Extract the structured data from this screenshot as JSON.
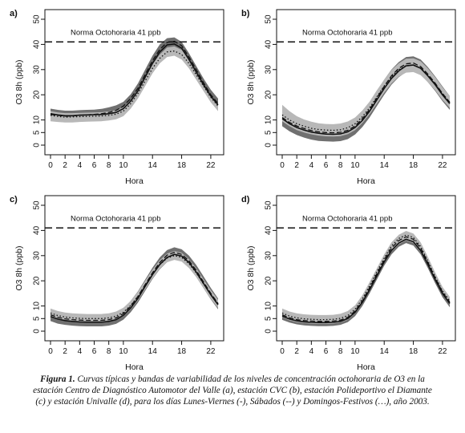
{
  "chart_data": [
    {
      "type": "line",
      "panel_label": "a)",
      "xlabel": "Hora",
      "ylabel": "O3 8h (ppb)",
      "xlim": [
        0,
        23
      ],
      "ylim": [
        0,
        50
      ],
      "x_ticks": [
        0,
        2,
        4,
        6,
        8,
        10,
        14,
        18,
        22
      ],
      "y_ticks": [
        0,
        5,
        10,
        20,
        30,
        40,
        50
      ],
      "reference_line": {
        "value": 41,
        "label": "Norma Octohoraria 41 ppb"
      },
      "x": [
        0,
        1,
        2,
        3,
        4,
        5,
        6,
        7,
        8,
        9,
        10,
        11,
        12,
        13,
        14,
        15,
        16,
        17,
        18,
        19,
        20,
        21,
        22,
        23
      ],
      "series": [
        {
          "style": "solid",
          "values": [
            12.5,
            12,
            11.7,
            11.7,
            11.9,
            12,
            12.1,
            12.2,
            12.5,
            13,
            14.5,
            17.5,
            21.5,
            27,
            32.5,
            37,
            39.8,
            40.2,
            38.5,
            34,
            29,
            24,
            19.5,
            16
          ]
        },
        {
          "style": "dashed",
          "values": [
            12.2,
            11.8,
            11.5,
            11.6,
            11.8,
            12,
            12.2,
            12.5,
            13,
            13.8,
            15.5,
            18.5,
            22.5,
            28,
            33.5,
            38,
            40.8,
            41.2,
            39.5,
            35,
            30,
            24.8,
            20,
            16.5
          ]
        },
        {
          "style": "dotted",
          "values": [
            11.8,
            11.4,
            11.1,
            11.2,
            11.3,
            11.4,
            11.5,
            11.6,
            11.8,
            12.3,
            13.5,
            16.5,
            20.5,
            25.5,
            30.5,
            34.5,
            37,
            37.4,
            36,
            32.5,
            28,
            23.5,
            19,
            15.5
          ]
        }
      ],
      "bands": [
        {
          "shade": "dark",
          "lower": [
            10.5,
            10.2,
            10,
            10,
            10.2,
            10.3,
            10.4,
            10.5,
            10.8,
            11.3,
            12.8,
            15.8,
            19.8,
            25,
            30.5,
            35,
            37.8,
            38.2,
            36.5,
            32,
            27,
            22,
            17.5,
            14
          ],
          "upper": [
            14.5,
            14,
            13.7,
            13.7,
            13.9,
            14,
            14.1,
            14.4,
            15,
            15.8,
            17.2,
            20.2,
            24.5,
            30,
            35.5,
            40,
            42.5,
            42.8,
            41,
            36.5,
            31.5,
            26.5,
            22,
            18.5
          ]
        },
        {
          "shade": "light",
          "lower": [
            9.5,
            9.2,
            9,
            9,
            9.2,
            9.3,
            9.4,
            9.5,
            9.8,
            10.3,
            11.5,
            14.5,
            18.5,
            23.5,
            28.5,
            32.5,
            35,
            35.5,
            34,
            30.5,
            26,
            21.5,
            17,
            13.5
          ],
          "upper": [
            13.5,
            13,
            12.7,
            12.7,
            12.8,
            12.9,
            13,
            13.1,
            13.4,
            13.9,
            15,
            18,
            22,
            27,
            32,
            36,
            38.8,
            39.2,
            37.8,
            34,
            29.5,
            24.5,
            20,
            16.5
          ]
        }
      ]
    },
    {
      "type": "line",
      "panel_label": "b)",
      "xlabel": "Hora",
      "ylabel": "O3 8h (ppb)",
      "xlim": [
        0,
        23
      ],
      "ylim": [
        0,
        50
      ],
      "x_ticks": [
        0,
        2,
        4,
        6,
        8,
        10,
        14,
        18,
        22
      ],
      "y_ticks": [
        0,
        5,
        10,
        20,
        30,
        40,
        50
      ],
      "reference_line": {
        "value": 41,
        "label": "Norma Octohoraria 41 ppb"
      },
      "x": [
        0,
        1,
        2,
        3,
        4,
        5,
        6,
        7,
        8,
        9,
        10,
        11,
        12,
        13,
        14,
        15,
        16,
        17,
        18,
        19,
        20,
        21,
        22,
        23
      ],
      "series": [
        {
          "style": "solid",
          "values": [
            10.5,
            8.5,
            7,
            6,
            5.2,
            4.7,
            4.4,
            4.3,
            4.5,
            5.3,
            7,
            9.8,
            13.5,
            18,
            22.5,
            26.5,
            29.5,
            31.5,
            31.8,
            30.5,
            27.5,
            24,
            20,
            16.5
          ]
        },
        {
          "style": "dashed",
          "values": [
            11,
            9,
            7.6,
            6.6,
            5.8,
            5.3,
            5,
            4.9,
            5.1,
            5.9,
            7.6,
            10.5,
            14.2,
            18.8,
            23.3,
            27.5,
            30.5,
            32.3,
            32.6,
            31.2,
            28.2,
            24.6,
            20.5,
            17
          ]
        },
        {
          "style": "dotted",
          "values": [
            12,
            10,
            8.5,
            7.5,
            6.7,
            6.2,
            6,
            5.9,
            6.1,
            6.9,
            8.5,
            11.3,
            14.8,
            19.2,
            23.5,
            27.2,
            30,
            31.6,
            31.8,
            30.6,
            27.8,
            24.3,
            20.5,
            17
          ]
        }
      ],
      "bands": [
        {
          "shade": "dark",
          "lower": [
            7.5,
            5.5,
            4,
            3,
            2.2,
            1.7,
            1.5,
            1.4,
            1.6,
            2.4,
            4.2,
            7.2,
            11,
            15.5,
            20,
            24,
            27,
            29,
            29.3,
            28,
            25,
            21.5,
            17.5,
            14
          ],
          "upper": [
            13.5,
            11.5,
            10,
            9,
            8.2,
            7.7,
            7.4,
            7.3,
            7.6,
            8.4,
            10.2,
            13,
            16.8,
            21.5,
            26,
            30,
            33,
            35,
            35.3,
            34,
            31,
            27.3,
            23.3,
            19.5
          ]
        },
        {
          "shade": "light",
          "lower": [
            9.5,
            7.5,
            6,
            5,
            4.3,
            3.8,
            3.5,
            3.4,
            3.6,
            4.4,
            6,
            8.8,
            12.3,
            16.5,
            20.8,
            24.5,
            27.2,
            28.8,
            29,
            27.8,
            25,
            21.8,
            18,
            14.8
          ],
          "upper": [
            16,
            13.5,
            11.5,
            10.2,
            9.3,
            8.7,
            8.4,
            8.3,
            8.6,
            9.4,
            11,
            13.8,
            17.3,
            21.8,
            26,
            29.8,
            32.5,
            34.3,
            34.5,
            33.3,
            30.5,
            27,
            23,
            19.5
          ]
        }
      ]
    },
    {
      "type": "line",
      "panel_label": "c)",
      "xlabel": "Hora",
      "ylabel": "O3 8h (ppb)",
      "xlim": [
        0,
        23
      ],
      "ylim": [
        0,
        50
      ],
      "x_ticks": [
        0,
        2,
        4,
        6,
        8,
        10,
        14,
        18,
        22
      ],
      "y_ticks": [
        0,
        5,
        10,
        20,
        30,
        40,
        50
      ],
      "reference_line": {
        "value": 41,
        "label": "Norma Octohoraria 41 ppb"
      },
      "x": [
        0,
        1,
        2,
        3,
        4,
        5,
        6,
        7,
        8,
        9,
        10,
        11,
        12,
        13,
        14,
        15,
        16,
        17,
        18,
        19,
        20,
        21,
        22,
        23
      ],
      "series": [
        {
          "style": "solid",
          "values": [
            5.8,
            4.8,
            4.2,
            3.9,
            3.7,
            3.6,
            3.6,
            3.6,
            3.9,
            4.6,
            6.3,
            9.2,
            13,
            17.8,
            22.5,
            26.5,
            29.3,
            30.5,
            29.8,
            27.3,
            23.5,
            19,
            14.5,
            10.5
          ]
        },
        {
          "style": "dashed",
          "values": [
            6.5,
            5.5,
            4.9,
            4.6,
            4.4,
            4.3,
            4.3,
            4.3,
            4.6,
            5.3,
            7,
            9.9,
            13.8,
            18.5,
            23.2,
            27.3,
            30.2,
            31.3,
            30.5,
            28,
            24.2,
            19.6,
            15,
            11
          ]
        },
        {
          "style": "dotted",
          "values": [
            7.2,
            6.2,
            5.6,
            5.3,
            5.1,
            5,
            5,
            5,
            5.3,
            6,
            7.5,
            10.2,
            13.8,
            18.2,
            22.6,
            26.4,
            29,
            30,
            29.3,
            26.8,
            23.2,
            18.8,
            14.5,
            10.8
          ]
        }
      ],
      "bands": [
        {
          "shade": "dark",
          "lower": [
            4,
            3,
            2.5,
            2.2,
            2,
            1.9,
            1.9,
            1.9,
            2.2,
            2.9,
            4.6,
            7.5,
            11.3,
            16,
            20.7,
            24.6,
            27.4,
            28.6,
            27.9,
            25.4,
            21.6,
            17.1,
            12.6,
            8.7
          ],
          "upper": [
            8.5,
            7.5,
            7,
            6.7,
            6.5,
            6.4,
            6.4,
            6.4,
            6.7,
            7.4,
            9,
            12,
            15.8,
            20.5,
            25.2,
            29.3,
            32.2,
            33.3,
            32.5,
            30,
            26.3,
            21.8,
            17.2,
            13
          ]
        },
        {
          "shade": "light",
          "lower": [
            5.5,
            4.6,
            4,
            3.7,
            3.5,
            3.4,
            3.4,
            3.4,
            3.7,
            4.4,
            5.9,
            8.6,
            12.2,
            16.6,
            21,
            24.8,
            27.4,
            28.3,
            27.6,
            25.1,
            21.5,
            17.1,
            12.8,
            9.2
          ],
          "upper": [
            9,
            8,
            7.4,
            7.1,
            6.9,
            6.8,
            6.8,
            6.8,
            7.1,
            7.8,
            9.3,
            12,
            15.6,
            20,
            24.4,
            28.2,
            30.8,
            31.8,
            31.1,
            28.6,
            25,
            20.6,
            16.3,
            12.5
          ]
        }
      ]
    },
    {
      "type": "line",
      "panel_label": "d)",
      "xlabel": "Hora",
      "ylabel": "O3 8h (ppb)",
      "xlim": [
        0,
        23
      ],
      "ylim": [
        0,
        50
      ],
      "x_ticks": [
        0,
        2,
        4,
        6,
        8,
        10,
        14,
        18,
        22
      ],
      "y_ticks": [
        0,
        5,
        10,
        20,
        30,
        40,
        50
      ],
      "reference_line": {
        "value": 41,
        "label": "Norma Octohoraria 41 ppb"
      },
      "x": [
        0,
        1,
        2,
        3,
        4,
        5,
        6,
        7,
        8,
        9,
        10,
        11,
        12,
        13,
        14,
        15,
        16,
        17,
        18,
        19,
        20,
        21,
        22,
        23
      ],
      "series": [
        {
          "style": "solid",
          "values": [
            6,
            4.8,
            4.1,
            3.7,
            3.5,
            3.4,
            3.4,
            3.5,
            3.9,
            5,
            7.5,
            11.5,
            16.5,
            22,
            27.5,
            32,
            35,
            36.5,
            35.5,
            32,
            26.5,
            20.5,
            15,
            11
          ]
        },
        {
          "style": "dashed",
          "values": [
            6.5,
            5.3,
            4.6,
            4.2,
            4,
            3.9,
            3.9,
            4,
            4.4,
            5.5,
            8,
            12,
            17.2,
            22.8,
            28.3,
            33,
            36,
            37.5,
            36.5,
            33,
            27.3,
            21.2,
            15.5,
            11.5
          ]
        },
        {
          "style": "dotted",
          "values": [
            7.2,
            6,
            5.3,
            4.9,
            4.7,
            4.6,
            4.6,
            4.7,
            5.1,
            6.2,
            8.7,
            12.8,
            18,
            23.6,
            29,
            33.8,
            36.8,
            38.2,
            37.2,
            33.6,
            27.8,
            21.6,
            16,
            12
          ]
        }
      ],
      "bands": [
        {
          "shade": "dark",
          "lower": [
            4.5,
            3.4,
            2.7,
            2.3,
            2.1,
            2,
            2,
            2.1,
            2.5,
            3.6,
            6,
            10,
            15,
            20.5,
            26,
            30.5,
            33.5,
            35,
            34,
            30.5,
            25,
            19,
            13.5,
            9.5
          ],
          "upper": [
            8,
            6.8,
            6.1,
            5.7,
            5.5,
            5.4,
            5.4,
            5.5,
            5.9,
            7,
            9.5,
            13.5,
            18.7,
            24.3,
            29.8,
            34.5,
            37.5,
            39,
            38,
            34.5,
            28.8,
            22.7,
            17,
            13
          ]
        },
        {
          "shade": "light",
          "lower": [
            5.5,
            4.3,
            3.6,
            3.2,
            3,
            2.9,
            2.9,
            3,
            3.4,
            4.5,
            7,
            11,
            16,
            21.5,
            27,
            31.5,
            34.5,
            36,
            35,
            31.5,
            26,
            20,
            14.5,
            10.5
          ],
          "upper": [
            9,
            7.8,
            7.1,
            6.7,
            6.5,
            6.4,
            6.4,
            6.5,
            6.9,
            8,
            10.3,
            14.3,
            19.5,
            25,
            30.5,
            35.3,
            38.3,
            39.8,
            38.8,
            35.3,
            29.5,
            23.3,
            17.6,
            13.6
          ]
        }
      ]
    }
  ],
  "caption": {
    "label": "Figura 1.",
    "text": " Curvas típicas y bandas de variabilidad de los niveles de concentración octohoraria de O3 en la estación Centro de Diagnóstico Automotor del Valle (a), estación CVC (b), estación Polideportivo el Diamante (c) y estación Univalle (d), para los días Lunes-Viernes (-), Sábados (--) y Domingos-Festivos (…), año 2003."
  }
}
